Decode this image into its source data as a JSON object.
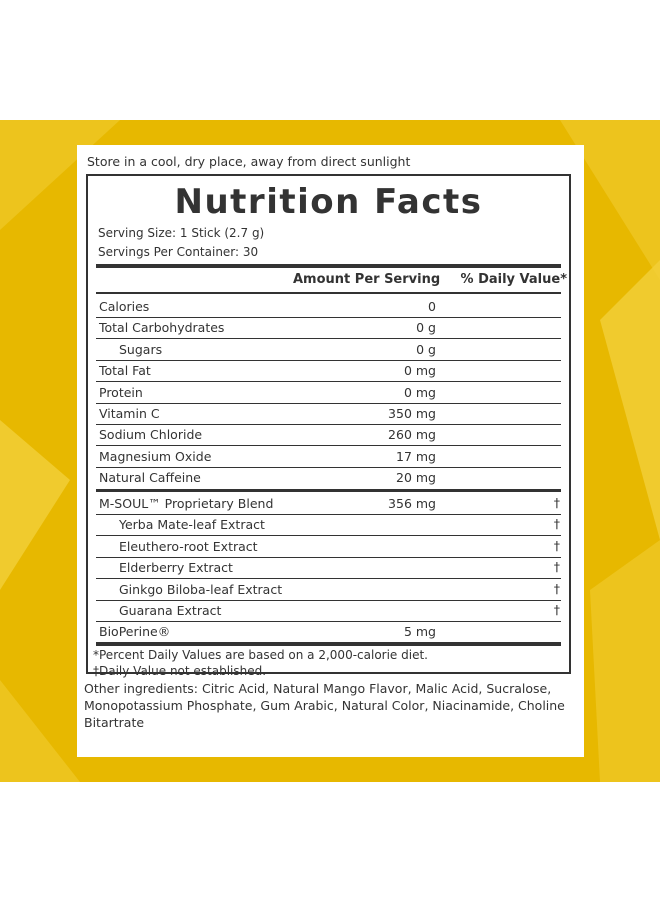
{
  "storage_note": "Store in a cool, dry place, away from direct sunlight",
  "title": "Nutrition Facts",
  "serving_size": "Serving Size: 1 Stick (2.7 g)",
  "servings_per_container": "Servings Per Container: 30",
  "headers": {
    "amount": "Amount Per Serving",
    "daily_value": "% Daily Value*"
  },
  "nutrients": [
    {
      "label": "Calories",
      "amount": "0",
      "dv": "",
      "indent": false
    },
    {
      "label": "Total Carbohydrates",
      "amount": "0 g",
      "dv": "",
      "indent": false
    },
    {
      "label": "Sugars",
      "amount": "0 g",
      "dv": "",
      "indent": true
    },
    {
      "label": "Total Fat",
      "amount": "0 mg",
      "dv": "",
      "indent": false
    },
    {
      "label": "Protein",
      "amount": "0 mg",
      "dv": "",
      "indent": false
    },
    {
      "label": "Vitamin C",
      "amount": "350 mg",
      "dv": "",
      "indent": false
    },
    {
      "label": "Sodium Chloride",
      "amount": "260 mg",
      "dv": "",
      "indent": false
    },
    {
      "label": "Magnesium Oxide",
      "amount": "17 mg",
      "dv": "",
      "indent": false
    },
    {
      "label": "Natural Caffeine",
      "amount": "20 mg",
      "dv": "",
      "indent": false
    }
  ],
  "blend": [
    {
      "label": "M-SOUL™ Proprietary Blend",
      "amount": "356 mg",
      "dv": "†",
      "indent": false
    },
    {
      "label": "Yerba Mate-leaf Extract",
      "amount": "",
      "dv": "†",
      "indent": true
    },
    {
      "label": "Eleuthero-root Extract",
      "amount": "",
      "dv": "†",
      "indent": true
    },
    {
      "label": "Elderberry Extract",
      "amount": "",
      "dv": "†",
      "indent": true
    },
    {
      "label": "Ginkgo Biloba-leaf Extract",
      "amount": "",
      "dv": "†",
      "indent": true
    },
    {
      "label": "Guarana Extract",
      "amount": "",
      "dv": "†",
      "indent": true
    },
    {
      "label": "BioPerine®",
      "amount": "5 mg",
      "dv": "",
      "indent": false
    }
  ],
  "footnote_1": "*Percent Daily Values are based on a 2,000-calorie diet.",
  "footnote_2": "†Daily Value not established.",
  "other_ingredients": "Other ingredients: Citric Acid, Natural Mango Flavor, Malic Acid, Sucralose, Monopotassium Phosphate, Gum Arabic, Natural Color, Niacinamide, Choline Bitartrate",
  "colors": {
    "background_band": "#e7b800",
    "panel_ink": "#333333"
  }
}
